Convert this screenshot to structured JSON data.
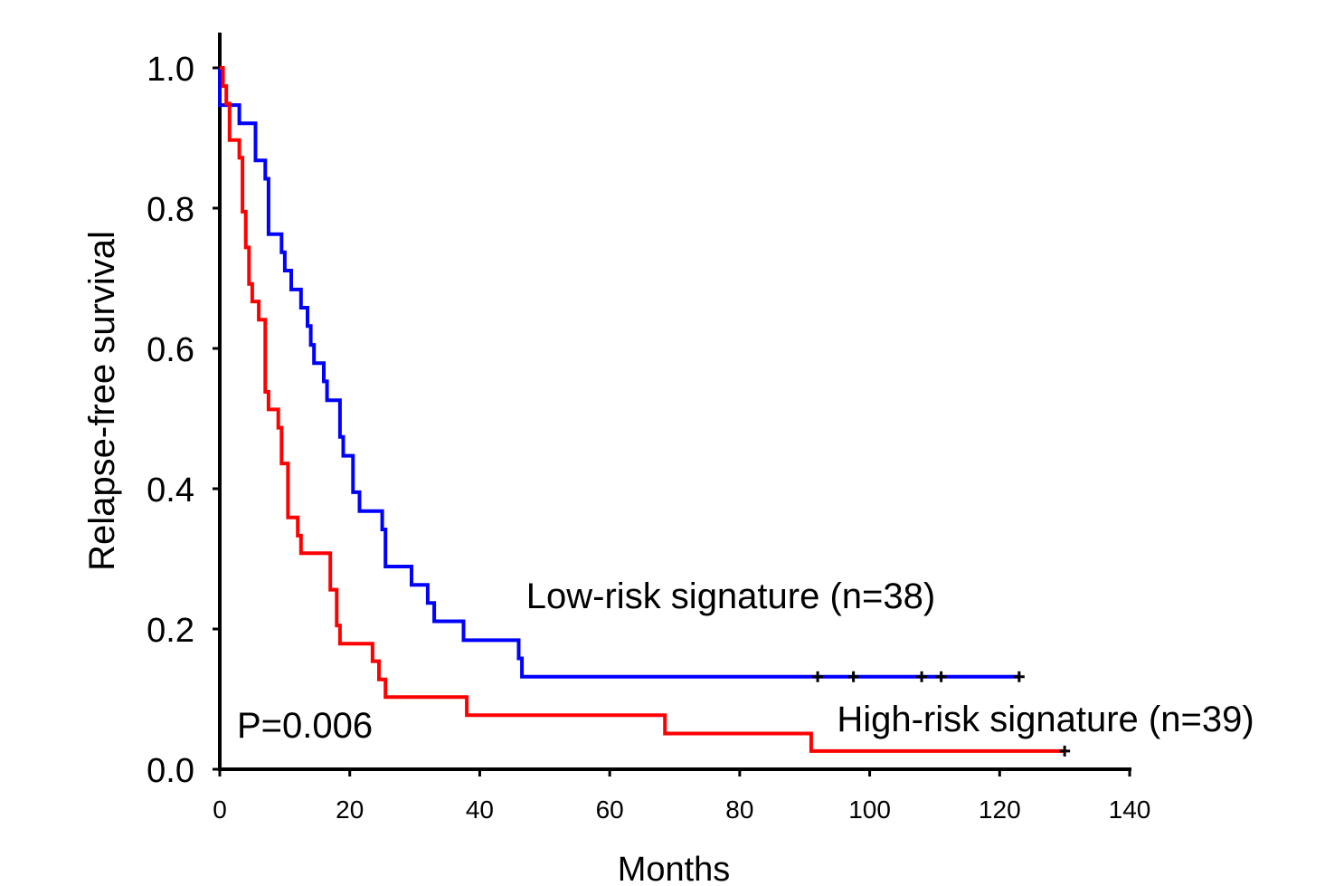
{
  "chart_data": {
    "type": "line",
    "subtype": "kaplan-meier",
    "xlabel": "Months",
    "ylabel": "Relapse-free survival",
    "xlim": [
      0,
      140
    ],
    "ylim": [
      0,
      1.0
    ],
    "x_ticks": [
      0,
      20,
      40,
      60,
      80,
      100,
      120,
      140
    ],
    "y_ticks": [
      0.0,
      0.2,
      0.4,
      0.6,
      0.8,
      1.0
    ],
    "x_tick_labels": [
      "0",
      "20",
      "40",
      "60",
      "80",
      "100",
      "120",
      "140"
    ],
    "y_tick_labels": [
      "0.0",
      "0.2",
      "0.4",
      "0.6",
      "0.8",
      "1.0"
    ],
    "grid": false,
    "annotation": "P=0.006",
    "series": [
      {
        "name": "Low-risk signature (n=38)",
        "color": "#0000ff",
        "steps": [
          [
            0,
            1.0
          ],
          [
            0,
            0.947
          ],
          [
            3,
            0.947
          ],
          [
            3,
            0.921
          ],
          [
            5.5,
            0.921
          ],
          [
            5.5,
            0.868
          ],
          [
            7,
            0.868
          ],
          [
            7,
            0.842
          ],
          [
            7.5,
            0.842
          ],
          [
            7.5,
            0.763
          ],
          [
            9.5,
            0.763
          ],
          [
            9.5,
            0.737
          ],
          [
            10,
            0.737
          ],
          [
            10,
            0.711
          ],
          [
            11,
            0.711
          ],
          [
            11,
            0.684
          ],
          [
            12.5,
            0.684
          ],
          [
            12.5,
            0.658
          ],
          [
            13.5,
            0.658
          ],
          [
            13.5,
            0.632
          ],
          [
            14,
            0.632
          ],
          [
            14,
            0.605
          ],
          [
            14.5,
            0.605
          ],
          [
            14.5,
            0.579
          ],
          [
            16,
            0.579
          ],
          [
            16,
            0.553
          ],
          [
            16.5,
            0.553
          ],
          [
            16.5,
            0.526
          ],
          [
            18.5,
            0.526
          ],
          [
            18.5,
            0.474
          ],
          [
            19,
            0.474
          ],
          [
            19,
            0.447
          ],
          [
            20.5,
            0.447
          ],
          [
            20.5,
            0.395
          ],
          [
            21.5,
            0.395
          ],
          [
            21.5,
            0.368
          ],
          [
            25,
            0.368
          ],
          [
            25,
            0.342
          ],
          [
            25.5,
            0.342
          ],
          [
            25.5,
            0.289
          ],
          [
            29.5,
            0.289
          ],
          [
            29.5,
            0.263
          ],
          [
            32,
            0.263
          ],
          [
            32,
            0.237
          ],
          [
            33,
            0.237
          ],
          [
            33,
            0.211
          ],
          [
            37.5,
            0.211
          ],
          [
            37.5,
            0.184
          ],
          [
            46,
            0.184
          ],
          [
            46,
            0.158
          ],
          [
            46.5,
            0.158
          ],
          [
            46.5,
            0.132
          ],
          [
            123,
            0.132
          ]
        ],
        "censored": [
          92,
          97.5,
          108,
          111,
          123
        ]
      },
      {
        "name": "High-risk signature (n=39)",
        "color": "#ff0000",
        "steps": [
          [
            0,
            1.0
          ],
          [
            0.5,
            1.0
          ],
          [
            0.5,
            0.974
          ],
          [
            1,
            0.974
          ],
          [
            1,
            0.949
          ],
          [
            1.5,
            0.949
          ],
          [
            1.5,
            0.897
          ],
          [
            3,
            0.897
          ],
          [
            3,
            0.872
          ],
          [
            3.5,
            0.872
          ],
          [
            3.5,
            0.795
          ],
          [
            4,
            0.795
          ],
          [
            4,
            0.744
          ],
          [
            4.5,
            0.744
          ],
          [
            4.5,
            0.692
          ],
          [
            5,
            0.692
          ],
          [
            5,
            0.667
          ],
          [
            6,
            0.667
          ],
          [
            6,
            0.641
          ],
          [
            7,
            0.641
          ],
          [
            7,
            0.538
          ],
          [
            7.5,
            0.538
          ],
          [
            7.5,
            0.513
          ],
          [
            9,
            0.513
          ],
          [
            9,
            0.487
          ],
          [
            9.5,
            0.487
          ],
          [
            9.5,
            0.436
          ],
          [
            10.5,
            0.436
          ],
          [
            10.5,
            0.359
          ],
          [
            12,
            0.359
          ],
          [
            12,
            0.333
          ],
          [
            12.5,
            0.333
          ],
          [
            12.5,
            0.308
          ],
          [
            17,
            0.308
          ],
          [
            17,
            0.256
          ],
          [
            18,
            0.256
          ],
          [
            18,
            0.205
          ],
          [
            18.5,
            0.205
          ],
          [
            18.5,
            0.179
          ],
          [
            23.5,
            0.179
          ],
          [
            23.5,
            0.154
          ],
          [
            24.5,
            0.154
          ],
          [
            24.5,
            0.128
          ],
          [
            25.5,
            0.128
          ],
          [
            25.5,
            0.103
          ],
          [
            38,
            0.103
          ],
          [
            38,
            0.077
          ],
          [
            68.5,
            0.077
          ],
          [
            68.5,
            0.051
          ],
          [
            91,
            0.051
          ],
          [
            91,
            0.026
          ],
          [
            130,
            0.026
          ]
        ],
        "censored": [
          130
        ]
      }
    ]
  }
}
